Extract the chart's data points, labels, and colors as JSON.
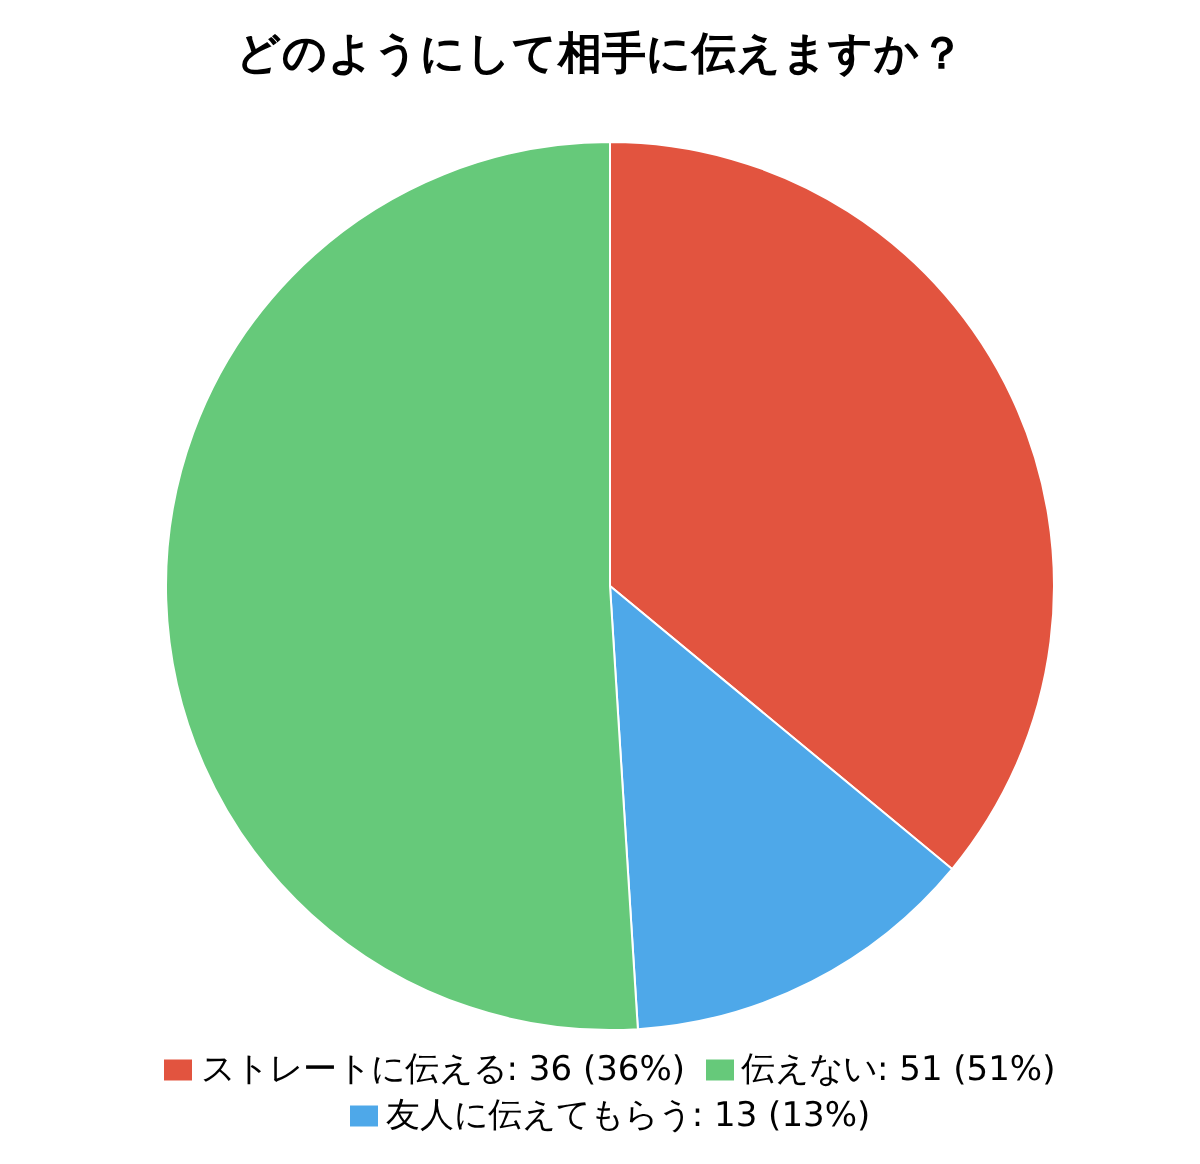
{
  "chart_data": {
    "type": "pie",
    "title": "どのようにして相手に伝えますか？",
    "categories": [
      "ストレートに伝える",
      "友人に伝えてもらう",
      "伝えない"
    ],
    "values": [
      36,
      13,
      51
    ],
    "value_labels": [
      "36 (36%)",
      "13 (13%)",
      "51 (51%)"
    ],
    "colors": [
      "#e2543f",
      "#4ea8e9",
      "#66c97a"
    ],
    "legend": "bottom"
  }
}
